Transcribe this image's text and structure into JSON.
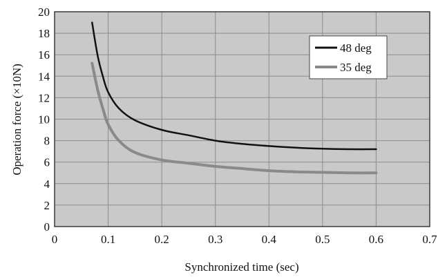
{
  "chart_data": {
    "type": "line",
    "title": "",
    "xlabel": "Synchronized time (sec)",
    "ylabel": "Operation force (×10N)",
    "xlim": [
      0,
      0.7
    ],
    "ylim": [
      0,
      20
    ],
    "xticks": [
      0,
      0.1,
      0.2,
      0.3,
      0.4,
      0.5,
      0.6,
      0.7
    ],
    "xtick_labels": [
      "0",
      "0.1",
      "0.2",
      "0.3",
      "0.4",
      "0.5",
      "0.6",
      "0.7"
    ],
    "yticks": [
      0,
      2,
      4,
      6,
      8,
      10,
      12,
      14,
      16,
      18,
      20
    ],
    "ytick_labels": [
      "0",
      "2",
      "4",
      "6",
      "8",
      "10",
      "12",
      "14",
      "16",
      "18",
      "20"
    ],
    "grid": true,
    "plot_background": "#c9c9c9",
    "legend_position": "top-right",
    "series": [
      {
        "name": "48 deg",
        "color": "#111111",
        "x": [
          0.07,
          0.08,
          0.09,
          0.1,
          0.12,
          0.15,
          0.2,
          0.25,
          0.3,
          0.35,
          0.4,
          0.45,
          0.5,
          0.55,
          0.6
        ],
        "y": [
          19.0,
          16.0,
          14.0,
          12.5,
          11.0,
          9.9,
          9.0,
          8.5,
          8.0,
          7.7,
          7.5,
          7.35,
          7.25,
          7.2,
          7.2
        ]
      },
      {
        "name": "35 deg",
        "color": "#8a8a8a",
        "x": [
          0.07,
          0.08,
          0.09,
          0.1,
          0.12,
          0.15,
          0.2,
          0.25,
          0.3,
          0.35,
          0.4,
          0.45,
          0.5,
          0.55,
          0.6
        ],
        "y": [
          15.2,
          12.8,
          11.0,
          9.5,
          8.0,
          6.9,
          6.2,
          5.9,
          5.6,
          5.4,
          5.2,
          5.1,
          5.05,
          5.0,
          5.0
        ]
      }
    ]
  }
}
